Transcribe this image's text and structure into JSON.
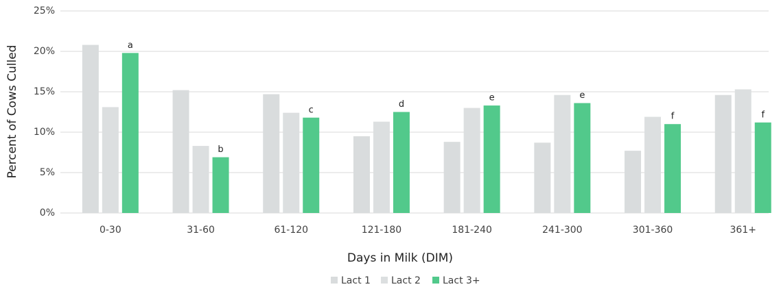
{
  "chart_data": {
    "type": "bar",
    "x_label": "Days in Milk (DIM)",
    "y_label": "Percent of Cows Culled",
    "categories": [
      "0-30",
      "31-60",
      "61-120",
      "121-180",
      "181-240",
      "241-300",
      "301-360",
      "361+"
    ],
    "series": [
      {
        "name": "Lact 1",
        "color": "#d9dcdd",
        "values": [
          20.8,
          15.2,
          14.7,
          9.5,
          8.8,
          8.7,
          7.7,
          14.6
        ]
      },
      {
        "name": "Lact 2",
        "color": "#dcdfe0",
        "values": [
          13.1,
          8.3,
          12.4,
          11.3,
          13.0,
          14.6,
          11.9,
          15.3
        ]
      },
      {
        "name": "Lact 3+",
        "color": "#52c98b",
        "values": [
          19.8,
          6.9,
          11.8,
          12.5,
          13.3,
          13.6,
          11.0,
          11.2
        ],
        "annotations": [
          "a",
          "b",
          "c",
          "d",
          "e",
          "e",
          "f",
          "f"
        ]
      }
    ],
    "ylim": [
      0,
      25
    ],
    "yticks": [
      {
        "value": 0,
        "label": "0%"
      },
      {
        "value": 5,
        "label": "5%"
      },
      {
        "value": 10,
        "label": "10%"
      },
      {
        "value": 15,
        "label": "15%"
      },
      {
        "value": 20,
        "label": "20%"
      },
      {
        "value": 25,
        "label": "25%"
      }
    ],
    "grid": true,
    "legend": "bottom"
  }
}
